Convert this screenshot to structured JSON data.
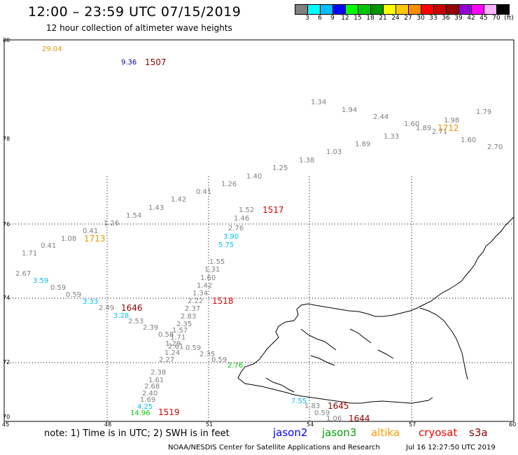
{
  "header": {
    "title": "12:00 – 23:59 UTC 07/15/2019",
    "subtitle": "12 hour collection of altimeter wave heights"
  },
  "scale": {
    "colors": [
      "#808080",
      "#00ffff",
      "#00bfff",
      "#0000ff",
      "#00ff00",
      "#00c800",
      "#009600",
      "#ffff00",
      "#ffc800",
      "#ff8c00",
      "#ff0000",
      "#c80000",
      "#960000",
      "#9400d3",
      "#ff00ff",
      "#ffb4ff",
      "#000000"
    ],
    "labels": [
      "3",
      "6",
      "9",
      "12",
      "15",
      "18",
      "21",
      "24",
      "27",
      "30",
      "33",
      "36",
      "39",
      "42",
      "45",
      "70",
      "(ft)"
    ]
  },
  "axes": {
    "y_ticks": [
      "80",
      "78",
      "76",
      "74",
      "72",
      "70"
    ],
    "x_ticks": [
      "45",
      "48",
      "51",
      "54",
      "57",
      "60"
    ]
  },
  "observations": [
    {
      "v": "29.04",
      "c": "#e69600"
    },
    {
      "v": "9.36",
      "c": "#0000b4"
    },
    {
      "v": "1.34",
      "c": "#808080"
    },
    {
      "v": "1.94",
      "c": "#808080"
    },
    {
      "v": "2.44",
      "c": "#808080"
    },
    {
      "v": "1.60",
      "c": "#808080"
    },
    {
      "v": "1.89",
      "c": "#808080"
    },
    {
      "v": "1.98",
      "c": "#808080"
    },
    {
      "v": "1.79",
      "c": "#808080"
    },
    {
      "v": "2.71",
      "c": "#808080"
    },
    {
      "v": "1.33",
      "c": "#808080"
    },
    {
      "v": "1.60",
      "c": "#808080"
    },
    {
      "v": "2.70",
      "c": "#808080"
    },
    {
      "v": "1.89",
      "c": "#808080"
    },
    {
      "v": "1.03",
      "c": "#808080"
    },
    {
      "v": "1.38",
      "c": "#808080"
    },
    {
      "v": "1.25",
      "c": "#808080"
    },
    {
      "v": "1.40",
      "c": "#808080"
    },
    {
      "v": "1.26",
      "c": "#808080"
    },
    {
      "v": "0.41",
      "c": "#808080"
    },
    {
      "v": "1.42",
      "c": "#808080"
    },
    {
      "v": "1.43",
      "c": "#808080"
    },
    {
      "v": "1.54",
      "c": "#808080"
    },
    {
      "v": "1.26",
      "c": "#808080"
    },
    {
      "v": "0.41",
      "c": "#808080"
    },
    {
      "v": "1.08",
      "c": "#808080"
    },
    {
      "v": "0.41",
      "c": "#808080"
    },
    {
      "v": "1.71",
      "c": "#808080"
    },
    {
      "v": "2.67",
      "c": "#808080"
    },
    {
      "v": "3.59",
      "c": "#00bfff"
    },
    {
      "v": "0.59",
      "c": "#808080"
    },
    {
      "v": "0.59",
      "c": "#808080"
    },
    {
      "v": "3.33",
      "c": "#00bfff"
    },
    {
      "v": "2.49",
      "c": "#808080"
    },
    {
      "v": "3.28",
      "c": "#00bfff"
    },
    {
      "v": "2.53",
      "c": "#808080"
    },
    {
      "v": "2.39",
      "c": "#808080"
    },
    {
      "v": "1.52",
      "c": "#808080"
    },
    {
      "v": "1.46",
      "c": "#808080"
    },
    {
      "v": "2.76",
      "c": "#808080"
    },
    {
      "v": "3.90",
      "c": "#00bfff"
    },
    {
      "v": "5.75",
      "c": "#00bfff"
    },
    {
      "v": "1.55",
      "c": "#808080"
    },
    {
      "v": "1.31",
      "c": "#808080"
    },
    {
      "v": "1.60",
      "c": "#808080"
    },
    {
      "v": "1.42",
      "c": "#808080"
    },
    {
      "v": "1.34",
      "c": "#808080"
    },
    {
      "v": "2.22",
      "c": "#808080"
    },
    {
      "v": "2.37",
      "c": "#808080"
    },
    {
      "v": "2.83",
      "c": "#808080"
    },
    {
      "v": "2.35",
      "c": "#808080"
    },
    {
      "v": "1.57",
      "c": "#808080"
    },
    {
      "v": "0.58",
      "c": "#808080"
    },
    {
      "v": "1.71",
      "c": "#808080"
    },
    {
      "v": "1.29",
      "c": "#808080"
    },
    {
      "v": "2.61",
      "c": "#808080"
    },
    {
      "v": "0.59",
      "c": "#808080"
    },
    {
      "v": "1.24",
      "c": "#808080"
    },
    {
      "v": "2.35",
      "c": "#808080"
    },
    {
      "v": "2.27",
      "c": "#808080"
    },
    {
      "v": "0.59",
      "c": "#808080"
    },
    {
      "v": "2.76",
      "c": "#00c800"
    },
    {
      "v": "2.38",
      "c": "#808080"
    },
    {
      "v": "1.61",
      "c": "#808080"
    },
    {
      "v": "2.68",
      "c": "#808080"
    },
    {
      "v": "2.40",
      "c": "#808080"
    },
    {
      "v": "1.69",
      "c": "#808080"
    },
    {
      "v": "4.25",
      "c": "#00bfff"
    },
    {
      "v": "14.96",
      "c": "#00c800"
    },
    {
      "v": "7.55",
      "c": "#00bfff"
    },
    {
      "v": "1.83",
      "c": "#808080"
    },
    {
      "v": "0.59",
      "c": "#808080"
    },
    {
      "v": "1.06",
      "c": "#808080"
    }
  ],
  "pass_labels": [
    {
      "t": "1507",
      "c": "#8b0000"
    },
    {
      "t": "1712",
      "c": "#e69600"
    },
    {
      "t": "1713",
      "c": "#e69600"
    },
    {
      "t": "1517",
      "c": "#dc0000"
    },
    {
      "t": "1646",
      "c": "#8b0000"
    },
    {
      "t": "1518",
      "c": "#dc0000"
    },
    {
      "t": "1519",
      "c": "#dc0000"
    },
    {
      "t": "1645",
      "c": "#8b0000"
    },
    {
      "t": "1644",
      "c": "#8b0000"
    }
  ],
  "footer": {
    "note": "note:  1) Time is in UTC;  2) SWH is in feet",
    "legend": [
      {
        "name": "jason2",
        "color": "#0000ff"
      },
      {
        "name": "jason3",
        "color": "#00a000"
      },
      {
        "name": "altika",
        "color": "#ff9900"
      },
      {
        "name": "cryosat",
        "color": "#ff0000"
      },
      {
        "name": "s3a",
        "color": "#8b0000"
      }
    ],
    "credit": "NOAA/NESDIS Center for Satellite Applications and Research",
    "timestamp": "Jul 16 12:27:50 UTC 2019"
  }
}
